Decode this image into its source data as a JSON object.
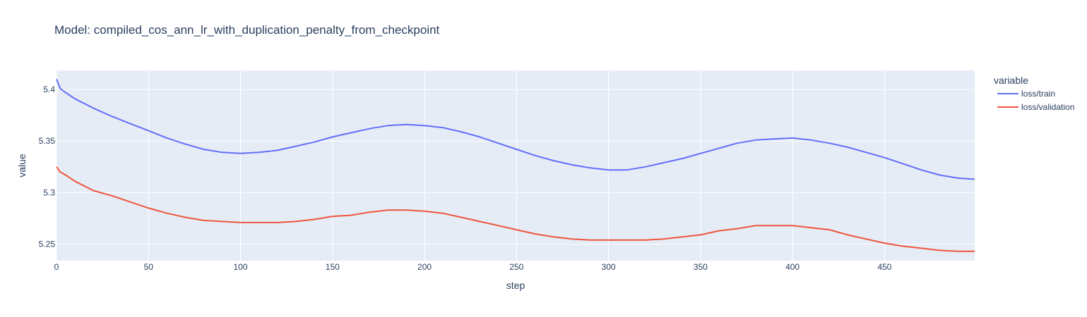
{
  "chart_data": {
    "type": "line",
    "title": "Model: compiled_cos_ann_lr_with_duplication_penalty_from_checkpoint",
    "xlabel": "step",
    "ylabel": "value",
    "xlim": [
      0,
      499
    ],
    "ylim": [
      5.234,
      5.4185
    ],
    "xticks": [
      0,
      50,
      100,
      150,
      200,
      250,
      300,
      350,
      400,
      450
    ],
    "yticks": [
      5.25,
      5.3,
      5.35,
      5.4
    ],
    "ytick_labels": [
      "5.25",
      "5.3",
      "5.35",
      "5.4"
    ],
    "grid": true,
    "legend": {
      "title": "variable",
      "position": "right"
    },
    "series": [
      {
        "name": "loss/train",
        "color": "#636efa",
        "x": [
          0,
          2,
          5,
          10,
          20,
          30,
          40,
          50,
          60,
          70,
          80,
          90,
          100,
          110,
          120,
          130,
          140,
          150,
          160,
          170,
          180,
          190,
          200,
          210,
          220,
          230,
          240,
          250,
          260,
          270,
          280,
          290,
          300,
          310,
          320,
          330,
          340,
          350,
          360,
          370,
          380,
          390,
          400,
          410,
          420,
          430,
          440,
          450,
          460,
          470,
          480,
          490,
          499
        ],
        "y": [
          5.41,
          5.401,
          5.397,
          5.391,
          5.382,
          5.374,
          5.367,
          5.36,
          5.353,
          5.347,
          5.342,
          5.339,
          5.338,
          5.339,
          5.341,
          5.345,
          5.349,
          5.354,
          5.358,
          5.362,
          5.365,
          5.366,
          5.365,
          5.363,
          5.359,
          5.354,
          5.348,
          5.342,
          5.336,
          5.331,
          5.327,
          5.324,
          5.322,
          5.322,
          5.325,
          5.329,
          5.333,
          5.338,
          5.343,
          5.348,
          5.351,
          5.352,
          5.353,
          5.351,
          5.348,
          5.344,
          5.339,
          5.334,
          5.328,
          5.322,
          5.317,
          5.314,
          5.313
        ]
      },
      {
        "name": "loss/validation",
        "color": "#ef553b",
        "x": [
          0,
          2,
          5,
          10,
          20,
          30,
          40,
          50,
          60,
          70,
          80,
          90,
          100,
          110,
          120,
          130,
          140,
          150,
          160,
          170,
          180,
          190,
          200,
          210,
          220,
          230,
          240,
          250,
          260,
          270,
          280,
          290,
          300,
          310,
          320,
          330,
          340,
          350,
          360,
          370,
          380,
          390,
          400,
          410,
          420,
          430,
          440,
          450,
          460,
          470,
          480,
          490,
          499
        ],
        "y": [
          5.325,
          5.32,
          5.317,
          5.311,
          5.302,
          5.297,
          5.291,
          5.285,
          5.28,
          5.276,
          5.273,
          5.272,
          5.271,
          5.271,
          5.271,
          5.272,
          5.274,
          5.277,
          5.278,
          5.281,
          5.283,
          5.283,
          5.282,
          5.28,
          5.276,
          5.272,
          5.268,
          5.264,
          5.26,
          5.257,
          5.255,
          5.254,
          5.254,
          5.254,
          5.254,
          5.255,
          5.257,
          5.259,
          5.263,
          5.265,
          5.268,
          5.268,
          5.268,
          5.266,
          5.264,
          5.259,
          5.255,
          5.251,
          5.248,
          5.246,
          5.244,
          5.243,
          5.243
        ]
      }
    ]
  }
}
